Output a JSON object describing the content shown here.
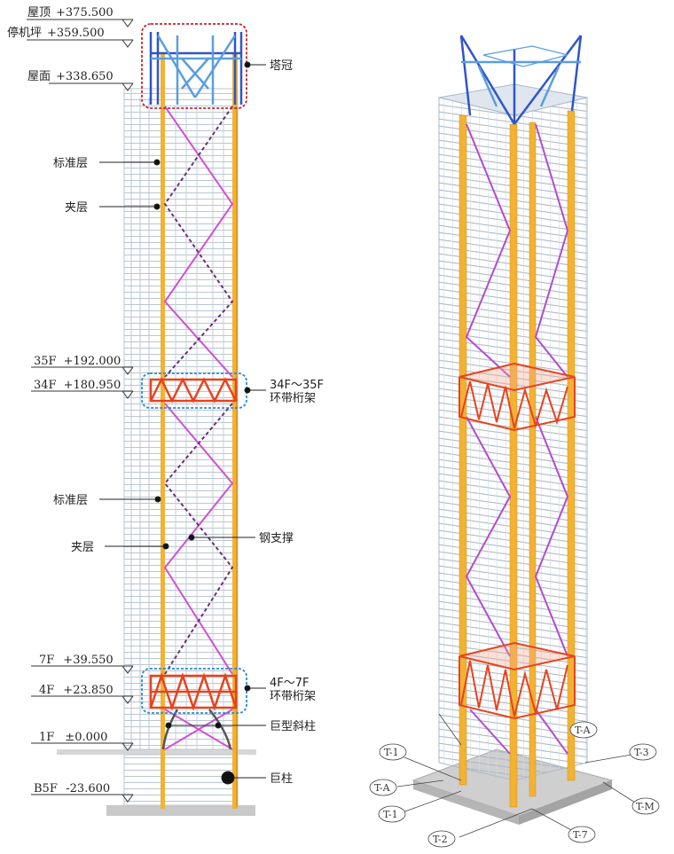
{
  "levels": [
    {
      "name": "屋顶",
      "elev": "+375.500"
    },
    {
      "name": "停机坪",
      "elev": "+359.500"
    },
    {
      "name": "屋面",
      "elev": "+338.650"
    },
    {
      "name": "35F",
      "elev": "+192.000"
    },
    {
      "name": "34F",
      "elev": "+180.950"
    },
    {
      "name": "7F",
      "elev": "+39.550"
    },
    {
      "name": "4F",
      "elev": "+23.850"
    },
    {
      "name": "1F",
      "elev": "±0.000"
    },
    {
      "name": "B5F",
      "elev": "-23.600"
    }
  ],
  "callouts": {
    "crown": "塔冠",
    "standard_floor_top": "标准层",
    "mezzanine_top": "夹层",
    "belt_truss_upper_line1": "34F～35F",
    "belt_truss_upper_line2": "环带桁架",
    "standard_floor_mid": "标准层",
    "steel_brace": "钢支撑",
    "mezzanine_mid": "夹层",
    "belt_truss_lower_line1": "4F～7F",
    "belt_truss_lower_line2": "环带桁架",
    "giant_inclined_column": "巨型斜柱",
    "giant_column": "巨柱"
  },
  "grid_labels": [
    "T-1",
    "T-A",
    "T-1",
    "T-2",
    "T-7",
    "T-A",
    "T-M",
    "T-3"
  ],
  "colors": {
    "crown": "#2f55c8",
    "crown_light": "#5a9ee0",
    "giant_column": "#f2b233",
    "belt_truss": "#e8421e",
    "brace": "#d14fd6",
    "brace_dark": "#6a2f7a",
    "frame": "#b9c6d2",
    "highlight_red": "#c0262d",
    "highlight_blue": "#2a8ad8"
  }
}
